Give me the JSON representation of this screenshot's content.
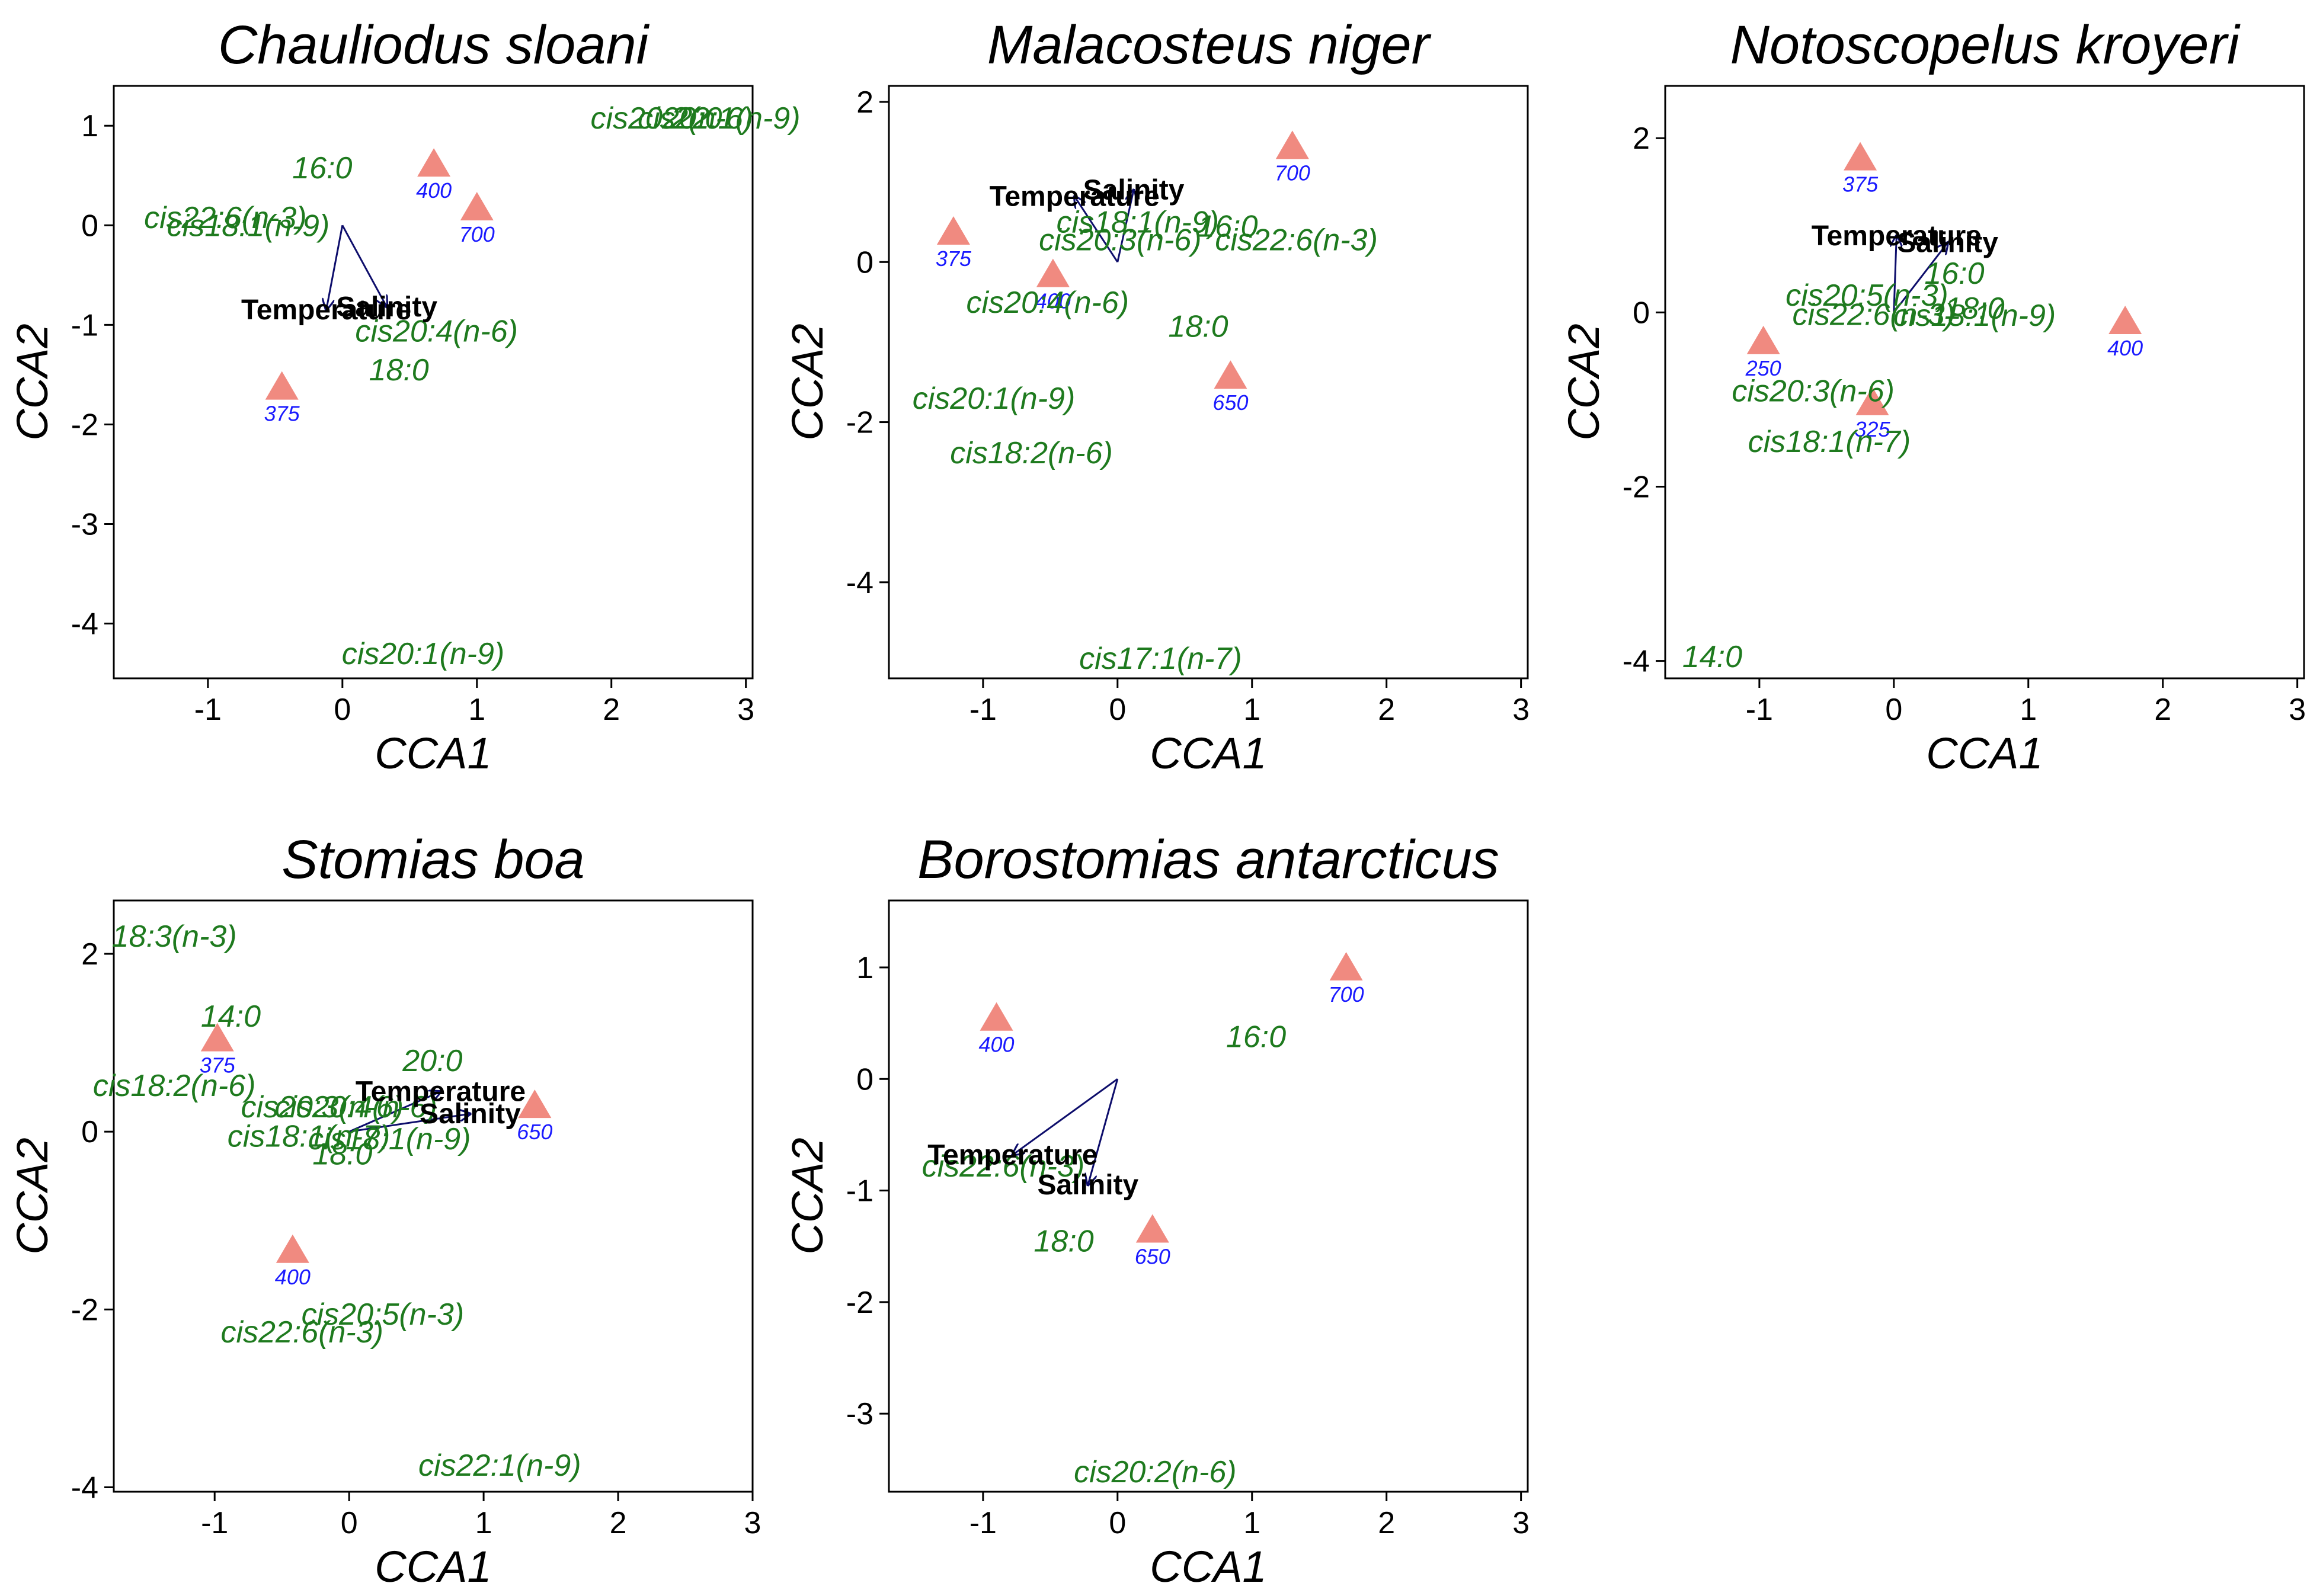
{
  "chart_data": [
    {
      "type": "scatter",
      "title": "Chauliodus sloani",
      "xlabel": "CCA1",
      "ylabel": "CCA2",
      "xlim": [
        -1.7,
        3.05
      ],
      "ylim": [
        -4.55,
        1.4
      ],
      "xticks": [
        -1,
        0,
        1,
        2,
        3
      ],
      "yticks": [
        -4,
        -3,
        -2,
        -1,
        0,
        1
      ],
      "sites": [
        {
          "label": "400",
          "x": 0.68,
          "y": 0.62
        },
        {
          "label": "700",
          "x": 1.0,
          "y": 0.18
        },
        {
          "label": "375",
          "x": -0.45,
          "y": -1.62
        }
      ],
      "fatty_acids": [
        {
          "label": "cis20:1(n-9)",
          "x": 0.6,
          "y": -4.3
        },
        {
          "label": "16:0",
          "x": -0.15,
          "y": 0.58
        },
        {
          "label": "cis22:6(n-3)",
          "x": -0.87,
          "y": 0.08
        },
        {
          "label": "cis18:1(n-9)",
          "x": -0.7,
          "y": 0.0
        },
        {
          "label": "cis20:4(n-6)",
          "x": 0.7,
          "y": -1.06
        },
        {
          "label": "18:0",
          "x": 0.42,
          "y": -1.45
        },
        {
          "label": "cis20:2(n-6)",
          "x": 2.45,
          "y": 1.08
        },
        {
          "label": "20:0",
          "x": 2.6,
          "y": 1.08
        },
        {
          "label": "cis22:1(n-9)",
          "x": 2.8,
          "y": 1.08
        }
      ],
      "env_vectors": [
        {
          "label": "Temperature",
          "x": -0.12,
          "y": -0.85
        },
        {
          "label": "Salinity",
          "x": 0.33,
          "y": -0.82
        }
      ]
    },
    {
      "type": "scatter",
      "title": "Malacosteus niger",
      "xlabel": "CCA1",
      "ylabel": "CCA2",
      "xlim": [
        -1.7,
        3.05
      ],
      "ylim": [
        -5.2,
        2.2
      ],
      "xticks": [
        -1,
        0,
        1,
        2,
        3
      ],
      "yticks": [
        -4,
        -2,
        0,
        2
      ],
      "sites": [
        {
          "label": "700",
          "x": 1.3,
          "y": 1.45
        },
        {
          "label": "375",
          "x": -1.22,
          "y": 0.38
        },
        {
          "label": "400",
          "x": -0.48,
          "y": -0.15
        },
        {
          "label": "650",
          "x": 0.84,
          "y": -1.42
        }
      ],
      "fatty_acids": [
        {
          "label": "cis18:1(n-9)",
          "x": 0.15,
          "y": 0.5
        },
        {
          "label": "16:0",
          "x": 0.82,
          "y": 0.45
        },
        {
          "label": "cis20:3(n-6)",
          "x": 0.02,
          "y": 0.28
        },
        {
          "label": "cis22:6(n-3)",
          "x": 1.33,
          "y": 0.28
        },
        {
          "label": "cis20:4(n-6)",
          "x": -0.52,
          "y": -0.5
        },
        {
          "label": "18:0",
          "x": 0.6,
          "y": -0.8
        },
        {
          "label": "cis20:1(n-9)",
          "x": -0.92,
          "y": -1.7
        },
        {
          "label": "cis18:2(n-6)",
          "x": -0.64,
          "y": -2.38
        },
        {
          "label": "cis17:1(n-7)",
          "x": 0.32,
          "y": -4.95
        }
      ],
      "env_vectors": [
        {
          "label": "Temperature",
          "x": -0.32,
          "y": 0.82
        },
        {
          "label": "Salinity",
          "x": 0.12,
          "y": 0.9
        }
      ]
    },
    {
      "type": "scatter",
      "title": "Notoscopelus kroyeri",
      "xlabel": "CCA1",
      "ylabel": "CCA2",
      "xlim": [
        -1.7,
        3.05
      ],
      "ylim": [
        -4.2,
        2.6
      ],
      "xticks": [
        -1,
        0,
        1,
        2,
        3
      ],
      "yticks": [
        -4,
        -2,
        0,
        2
      ],
      "sites": [
        {
          "label": "375",
          "x": -0.25,
          "y": 1.78
        },
        {
          "label": "400",
          "x": 1.72,
          "y": -0.1
        },
        {
          "label": "250",
          "x": -0.97,
          "y": -0.33
        },
        {
          "label": "325",
          "x": -0.16,
          "y": -1.03
        }
      ],
      "fatty_acids": [
        {
          "label": "16:0",
          "x": 0.45,
          "y": 0.45
        },
        {
          "label": "cis20:5(n-3)",
          "x": -0.2,
          "y": 0.2
        },
        {
          "label": "18:0",
          "x": 0.6,
          "y": 0.05
        },
        {
          "label": "cis22:6(n-3)",
          "x": -0.15,
          "y": -0.02
        },
        {
          "label": "cis18:1(n-9)",
          "x": 0.6,
          "y": -0.03
        },
        {
          "label": "cis20:3(n-6)",
          "x": -0.6,
          "y": -0.9
        },
        {
          "label": "cis18:1(n-7)",
          "x": -0.48,
          "y": -1.48
        },
        {
          "label": "14:0",
          "x": -1.35,
          "y": -3.95
        }
      ],
      "env_vectors": [
        {
          "label": "Temperature",
          "x": 0.02,
          "y": 0.88
        },
        {
          "label": "Salinity",
          "x": 0.4,
          "y": 0.8
        }
      ]
    },
    {
      "type": "scatter",
      "title": "Stomias boa",
      "xlabel": "CCA1",
      "ylabel": "CCA2",
      "xlim": [
        -1.75,
        3.0
      ],
      "ylim": [
        -4.05,
        2.6
      ],
      "xticks": [
        -1,
        0,
        1,
        2,
        3
      ],
      "yticks": [
        -4,
        -2,
        0,
        2
      ],
      "sites": [
        {
          "label": "375",
          "x": -0.98,
          "y": 1.05
        },
        {
          "label": "650",
          "x": 1.38,
          "y": 0.3
        },
        {
          "label": "400",
          "x": -0.42,
          "y": -1.33
        }
      ],
      "fatty_acids": [
        {
          "label": "18:3(n-3)",
          "x": -1.3,
          "y": 2.2
        },
        {
          "label": "14:0",
          "x": -0.88,
          "y": 1.3
        },
        {
          "label": "20:0",
          "x": 0.62,
          "y": 0.8
        },
        {
          "label": "cis18:2(n-6)",
          "x": -1.3,
          "y": 0.52
        },
        {
          "label": "cis20:3(n-6)",
          "x": -0.2,
          "y": 0.28
        },
        {
          "label": "cis20:4(n-6)",
          "x": 0.05,
          "y": 0.28
        },
        {
          "label": "cis18:1(n-7)",
          "x": -0.3,
          "y": -0.05
        },
        {
          "label": "cis18:1(n-9)",
          "x": 0.3,
          "y": -0.08
        },
        {
          "label": "18:0",
          "x": -0.05,
          "y": -0.25
        },
        {
          "label": "cis20:5(n-3)",
          "x": 0.25,
          "y": -2.05
        },
        {
          "label": "cis22:6(n-3)",
          "x": -0.35,
          "y": -2.25
        },
        {
          "label": "cis22:1(n-9)",
          "x": 1.12,
          "y": -3.75
        }
      ],
      "env_vectors": [
        {
          "label": "Temperature",
          "x": 0.68,
          "y": 0.45
        },
        {
          "label": "Salinity",
          "x": 0.9,
          "y": 0.2
        }
      ]
    },
    {
      "type": "scatter",
      "title": "Borostomias antarcticus",
      "xlabel": "CCA1",
      "ylabel": "CCA2",
      "xlim": [
        -1.7,
        3.05
      ],
      "ylim": [
        -3.7,
        1.6
      ],
      "xticks": [
        -1,
        0,
        1,
        2,
        3
      ],
      "yticks": [
        -3,
        -2,
        -1,
        0,
        1
      ],
      "sites": [
        {
          "label": "700",
          "x": 1.7,
          "y": 1.0
        },
        {
          "label": "400",
          "x": -0.9,
          "y": 0.55
        },
        {
          "label": "650",
          "x": 0.26,
          "y": -1.35
        }
      ],
      "fatty_acids": [
        {
          "label": "16:0",
          "x": 1.03,
          "y": 0.38
        },
        {
          "label": "cis22:6(n-3)",
          "x": -0.85,
          "y": -0.78
        },
        {
          "label": "18:0",
          "x": -0.4,
          "y": -1.45
        },
        {
          "label": "cis20:2(n-6)",
          "x": 0.28,
          "y": -3.52
        }
      ],
      "env_vectors": [
        {
          "label": "Temperature",
          "x": -0.78,
          "y": -0.68
        },
        {
          "label": "Salinity",
          "x": -0.22,
          "y": -0.95
        }
      ]
    }
  ]
}
